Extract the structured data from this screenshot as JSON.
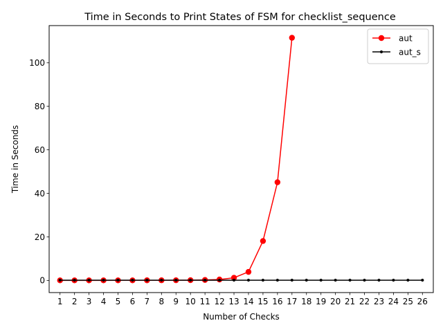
{
  "chart_data": {
    "type": "line",
    "title": "Time in Seconds to Print States of FSM for checklist_sequence",
    "xlabel": "Number of Checks",
    "ylabel": "Time in Seconds",
    "x": [
      1,
      2,
      3,
      4,
      5,
      6,
      7,
      8,
      9,
      10,
      11,
      12,
      13,
      14,
      15,
      16,
      17,
      18,
      19,
      20,
      21,
      22,
      23,
      24,
      25,
      26
    ],
    "xlim": [
      0.25,
      26.75
    ],
    "ylim": [
      -5.6,
      117.1
    ],
    "yticks": [
      0,
      20,
      40,
      60,
      80,
      100
    ],
    "grid": false,
    "legend_position": "top-right",
    "series": [
      {
        "name": "aut",
        "color": "#ff0000",
        "marker": "circle-large",
        "x": [
          1,
          2,
          3,
          4,
          5,
          6,
          7,
          8,
          9,
          10,
          11,
          12,
          13,
          14,
          15,
          16,
          17
        ],
        "values": [
          0.02,
          0.02,
          0.02,
          0.02,
          0.03,
          0.03,
          0.04,
          0.05,
          0.07,
          0.1,
          0.2,
          0.4,
          1.2,
          3.9,
          18.1,
          45.1,
          111.5
        ]
      },
      {
        "name": "aut_s",
        "color": "#000000",
        "marker": "circle-small",
        "x": [
          1,
          2,
          3,
          4,
          5,
          6,
          7,
          8,
          9,
          10,
          11,
          12,
          13,
          14,
          15,
          16,
          17,
          18,
          19,
          20,
          21,
          22,
          23,
          24,
          25,
          26
        ],
        "values": [
          0.1,
          0.1,
          0.1,
          0.1,
          0.1,
          0.1,
          0.1,
          0.1,
          0.1,
          0.1,
          0.1,
          0.1,
          0.1,
          0.1,
          0.1,
          0.1,
          0.1,
          0.1,
          0.1,
          0.1,
          0.1,
          0.1,
          0.1,
          0.1,
          0.1,
          0.1
        ]
      }
    ]
  }
}
